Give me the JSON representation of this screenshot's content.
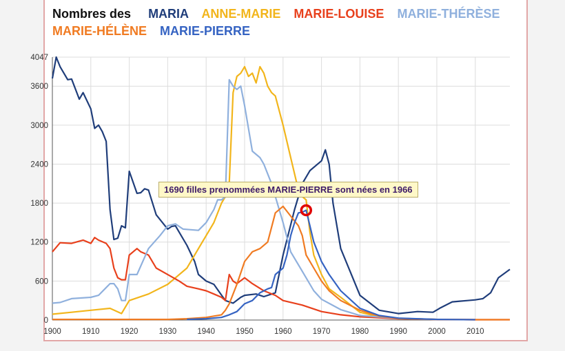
{
  "legend": {
    "lead": "Nombres des",
    "items": [
      {
        "label": "MARIA",
        "color": "#1f3d7a"
      },
      {
        "label": "ANNE-MARIE",
        "color": "#f2b51b"
      },
      {
        "label": "MARIE-LOUISE",
        "color": "#e8401c"
      },
      {
        "label": "MARIE-THÉRÈSE",
        "color": "#8fb0dd"
      },
      {
        "label": "MARIE-HÉLÈNE",
        "color": "#f07b22"
      },
      {
        "label": "MARIE-PIERRE",
        "color": "#3563c2"
      }
    ]
  },
  "tooltip": "1690 filles prenommées MARIE-PIERRE sont nées en 1966",
  "chart_data": {
    "type": "line",
    "title": "",
    "xlabel": "",
    "ylabel": "",
    "xlim": [
      1900,
      2019
    ],
    "ylim": [
      0,
      4047
    ],
    "xticks": [
      1900,
      1910,
      1920,
      1930,
      1940,
      1950,
      1960,
      1970,
      1980,
      1990,
      2000,
      2010
    ],
    "yticks": [
      0,
      600,
      1200,
      1800,
      2400,
      3000,
      3600,
      4047
    ],
    "grid": true,
    "highlight": {
      "series": "MARIE-PIERRE",
      "x": 1966,
      "y": 1690
    },
    "series": [
      {
        "name": "MARIA",
        "color": "#1f3d7a",
        "x": [
          1900,
          1901,
          1902,
          1904,
          1905,
          1907,
          1908,
          1910,
          1911,
          1912,
          1913,
          1914,
          1915,
          1916,
          1917,
          1918,
          1919,
          1920,
          1922,
          1923,
          1924,
          1925,
          1927,
          1930,
          1931,
          1932,
          1935,
          1937,
          1938,
          1940,
          1942,
          1945,
          1947,
          1949,
          1950,
          1953,
          1955,
          1958,
          1960,
          1963,
          1965,
          1967,
          1970,
          1971,
          1972,
          1973,
          1975,
          1980,
          1985,
          1990,
          1995,
          1999,
          2001,
          2004,
          2006,
          2008,
          2010,
          2012,
          2014,
          2016,
          2019
        ],
        "y": [
          3720,
          4047,
          3900,
          3700,
          3710,
          3400,
          3500,
          3250,
          2950,
          3000,
          2900,
          2750,
          1700,
          1240,
          1260,
          1450,
          1420,
          2290,
          1950,
          1960,
          2020,
          2000,
          1620,
          1400,
          1440,
          1450,
          1150,
          900,
          700,
          600,
          550,
          300,
          260,
          350,
          380,
          400,
          360,
          420,
          1000,
          1700,
          2100,
          2300,
          2450,
          2620,
          2400,
          1800,
          1100,
          380,
          150,
          100,
          130,
          120,
          190,
          280,
          290,
          300,
          310,
          330,
          420,
          650,
          780
        ]
      },
      {
        "name": "ANNE-MARIE",
        "color": "#f2b51b",
        "x": [
          1900,
          1905,
          1910,
          1915,
          1918,
          1920,
          1925,
          1930,
          1935,
          1938,
          1940,
          1942,
          1944,
          1945,
          1946,
          1947,
          1948,
          1949,
          1950,
          1951,
          1952,
          1953,
          1954,
          1955,
          1956,
          1957,
          1958,
          1960,
          1962,
          1964,
          1965,
          1966,
          1967,
          1968,
          1970,
          1972,
          1975,
          1980,
          1985,
          1990,
          2000
        ],
        "y": [
          90,
          120,
          150,
          180,
          100,
          300,
          400,
          550,
          800,
          1100,
          1300,
          1500,
          1800,
          1900,
          2100,
          3500,
          3750,
          3800,
          3900,
          3750,
          3800,
          3650,
          3900,
          3800,
          3600,
          3500,
          3450,
          3000,
          2500,
          2000,
          1900,
          1850,
          1350,
          1000,
          700,
          480,
          350,
          120,
          50,
          25,
          10
        ]
      },
      {
        "name": "MARIE-LOUISE",
        "color": "#e8401c",
        "x": [
          1900,
          1902,
          1905,
          1908,
          1910,
          1911,
          1912,
          1914,
          1915,
          1916,
          1917,
          1918,
          1919,
          1920,
          1922,
          1923,
          1925,
          1927,
          1930,
          1933,
          1935,
          1938,
          1940,
          1942,
          1944,
          1945,
          1946,
          1947,
          1948,
          1950,
          1952,
          1955,
          1958,
          1960,
          1965,
          1970,
          1975,
          1980,
          1990,
          2000,
          2010,
          2019
        ],
        "y": [
          1050,
          1190,
          1180,
          1230,
          1180,
          1270,
          1230,
          1180,
          1100,
          800,
          650,
          620,
          620,
          1000,
          1100,
          1050,
          1000,
          800,
          700,
          600,
          520,
          480,
          450,
          400,
          350,
          300,
          700,
          600,
          560,
          650,
          560,
          450,
          380,
          300,
          230,
          130,
          80,
          50,
          20,
          10,
          5,
          5
        ]
      },
      {
        "name": "MARIE-THÉRÈSE",
        "color": "#8fb0dd",
        "x": [
          1900,
          1902,
          1905,
          1910,
          1912,
          1914,
          1915,
          1916,
          1917,
          1918,
          1919,
          1920,
          1922,
          1925,
          1928,
          1930,
          1932,
          1934,
          1936,
          1938,
          1940,
          1942,
          1943,
          1944,
          1945,
          1946,
          1947,
          1948,
          1949,
          1950,
          1952,
          1954,
          1955,
          1957,
          1960,
          1962,
          1965,
          1968,
          1970,
          1975,
          1980,
          1990,
          2000
        ],
        "y": [
          260,
          270,
          330,
          350,
          380,
          500,
          560,
          560,
          480,
          300,
          300,
          700,
          700,
          1100,
          1300,
          1450,
          1480,
          1400,
          1390,
          1380,
          1500,
          1700,
          1850,
          1850,
          1900,
          3700,
          3600,
          3550,
          3600,
          3300,
          2600,
          2500,
          2400,
          2100,
          1500,
          1050,
          750,
          450,
          320,
          160,
          70,
          25,
          10
        ]
      },
      {
        "name": "MARIE-HÉLÈNE",
        "color": "#f07b22",
        "x": [
          1900,
          1910,
          1920,
          1930,
          1935,
          1940,
          1942,
          1944,
          1945,
          1946,
          1947,
          1948,
          1950,
          1952,
          1954,
          1956,
          1958,
          1960,
          1962,
          1964,
          1965,
          1966,
          1968,
          1970,
          1972,
          1975,
          1980,
          1985,
          1990,
          2000,
          2010,
          2019
        ],
        "y": [
          10,
          10,
          10,
          10,
          20,
          40,
          60,
          80,
          150,
          250,
          400,
          550,
          900,
          1050,
          1100,
          1200,
          1650,
          1750,
          1600,
          1450,
          1300,
          1000,
          800,
          600,
          450,
          300,
          150,
          60,
          25,
          10,
          5,
          5
        ]
      },
      {
        "name": "MARIE-PIERRE",
        "color": "#3563c2",
        "x": [
          1935,
          1940,
          1944,
          1946,
          1948,
          1950,
          1952,
          1954,
          1956,
          1957,
          1958,
          1960,
          1961,
          1962,
          1963,
          1964,
          1965,
          1966,
          1967,
          1968,
          1970,
          1972,
          1975,
          1980,
          1985,
          1990,
          2000,
          2010
        ],
        "y": [
          10,
          20,
          40,
          80,
          130,
          250,
          300,
          420,
          480,
          500,
          700,
          800,
          1000,
          1300,
          1500,
          1650,
          1660,
          1690,
          1450,
          1200,
          900,
          700,
          450,
          180,
          70,
          30,
          10,
          5
        ]
      }
    ]
  }
}
